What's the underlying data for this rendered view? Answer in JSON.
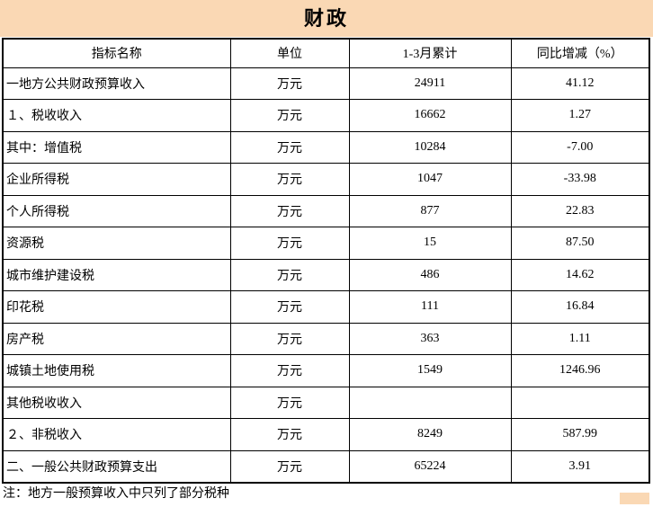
{
  "chart_data": {
    "type": "table",
    "title": "财政",
    "columns": [
      "指标名称",
      "单位",
      "1-3月累计",
      "同比增减（%）"
    ],
    "rows": [
      {
        "indicator": "一地方公共财政预算收入",
        "unit": "万元",
        "jan_mar_cumulative": "24911",
        "yoy_change_pct": "41.12",
        "emphasis": "row",
        "indent": false
      },
      {
        "indicator": "１、税收收入",
        "unit": "万元",
        "jan_mar_cumulative": "16662",
        "yoy_change_pct": "1.27",
        "emphasis": "name",
        "indent": false
      },
      {
        "indicator": "其中：增值税",
        "unit": "万元",
        "jan_mar_cumulative": "10284",
        "yoy_change_pct": "-7.00",
        "emphasis": "none",
        "indent": false
      },
      {
        "indicator": "企业所得税",
        "unit": "万元",
        "jan_mar_cumulative": "1047",
        "yoy_change_pct": "-33.98",
        "emphasis": "none",
        "indent": true
      },
      {
        "indicator": "个人所得税",
        "unit": "万元",
        "jan_mar_cumulative": "877",
        "yoy_change_pct": "22.83",
        "emphasis": "none",
        "indent": true
      },
      {
        "indicator": "资源税",
        "unit": "万元",
        "jan_mar_cumulative": "15",
        "yoy_change_pct": "87.50",
        "emphasis": "none",
        "indent": true
      },
      {
        "indicator": "城市维护建设税",
        "unit": "万元",
        "jan_mar_cumulative": "486",
        "yoy_change_pct": "14.62",
        "emphasis": "none",
        "indent": true
      },
      {
        "indicator": "印花税",
        "unit": "万元",
        "jan_mar_cumulative": "111",
        "yoy_change_pct": "16.84",
        "emphasis": "none",
        "indent": true
      },
      {
        "indicator": "房产税",
        "unit": "万元",
        "jan_mar_cumulative": "363",
        "yoy_change_pct": "1.11",
        "emphasis": "none",
        "indent": true
      },
      {
        "indicator": "城镇土地使用税",
        "unit": "万元",
        "jan_mar_cumulative": "1549",
        "yoy_change_pct": "1246.96",
        "emphasis": "none",
        "indent": true
      },
      {
        "indicator": "其他税收收入",
        "unit": "万元",
        "jan_mar_cumulative": "",
        "yoy_change_pct": "",
        "emphasis": "none",
        "indent": true
      },
      {
        "indicator": "２、非税收入",
        "unit": "万元",
        "jan_mar_cumulative": "8249",
        "yoy_change_pct": "587.99",
        "emphasis": "name",
        "indent": false
      },
      {
        "indicator": "二、一般公共财政预算支出",
        "unit": "万元",
        "jan_mar_cumulative": "65224",
        "yoy_change_pct": "3.91",
        "emphasis": "row",
        "indent": false
      }
    ],
    "footnote": "注：地方一般预算收入中只列了部分税种"
  },
  "colors": {
    "title_band_bg": "#fad8b4",
    "table_border": "#000000",
    "text": "#000000",
    "cell_bg": "#ffffff"
  }
}
